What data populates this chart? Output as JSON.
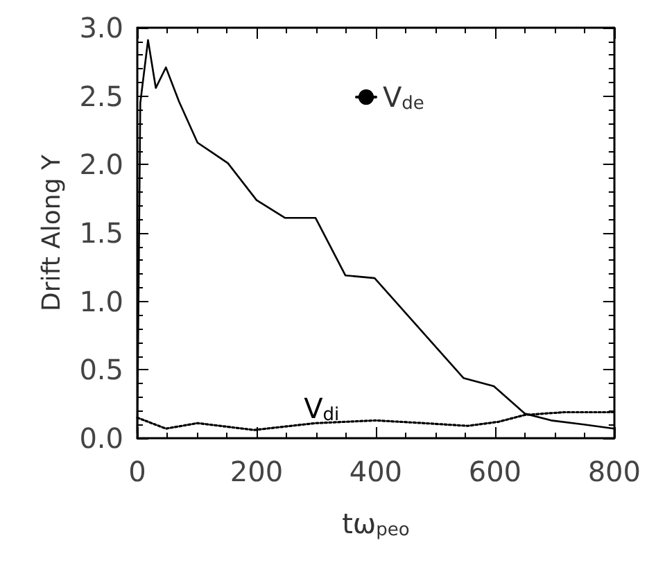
{
  "chart_data": {
    "type": "line",
    "xlabel": "tω$_{peo}$",
    "ylabel": "Drift Along Y",
    "x": [
      0,
      5,
      18,
      31,
      48,
      70,
      101,
      125,
      152,
      200,
      248,
      299,
      349,
      398,
      547,
      598,
      650,
      694,
      749,
      800
    ],
    "series": [
      {
        "name": "V$_{de}$",
        "color": "#000000",
        "line_style": "solid",
        "values": [
          0.04,
          2.45,
          2.91,
          2.56,
          2.71,
          2.46,
          2.16,
          2.09,
          2.01,
          1.74,
          1.61,
          1.61,
          1.19,
          1.17,
          0.44,
          0.38,
          0.18,
          0.13,
          0.1,
          0.07
        ]
      },
      {
        "name": "V$_{di}$",
        "color": "#000000",
        "line_style": "dotted",
        "x": [
          0,
          48,
          101,
          196,
          299,
          400,
          481,
          554,
          606,
          650,
          716,
          800
        ],
        "values": [
          0.15,
          0.07,
          0.11,
          0.06,
          0.11,
          0.13,
          0.11,
          0.09,
          0.12,
          0.17,
          0.19,
          0.19
        ]
      }
    ],
    "xlim": [
      0,
      800
    ],
    "xticks": [
      0,
      200,
      400,
      600,
      800
    ],
    "ylim": [
      0,
      3
    ],
    "yticks": [
      {
        "value": 0,
        "label": "0.0"
      },
      {
        "value": 0.5,
        "label": "0.5"
      },
      {
        "value": 1,
        "label": "1.0"
      },
      {
        "value": 1.5,
        "label": "1.5"
      },
      {
        "value": 2,
        "label": "2.0"
      },
      {
        "value": 2.5,
        "label": "2.5"
      },
      {
        "value": 3,
        "label": "3.0"
      }
    ],
    "grid": false,
    "legend": "top",
    "marker": "none"
  }
}
